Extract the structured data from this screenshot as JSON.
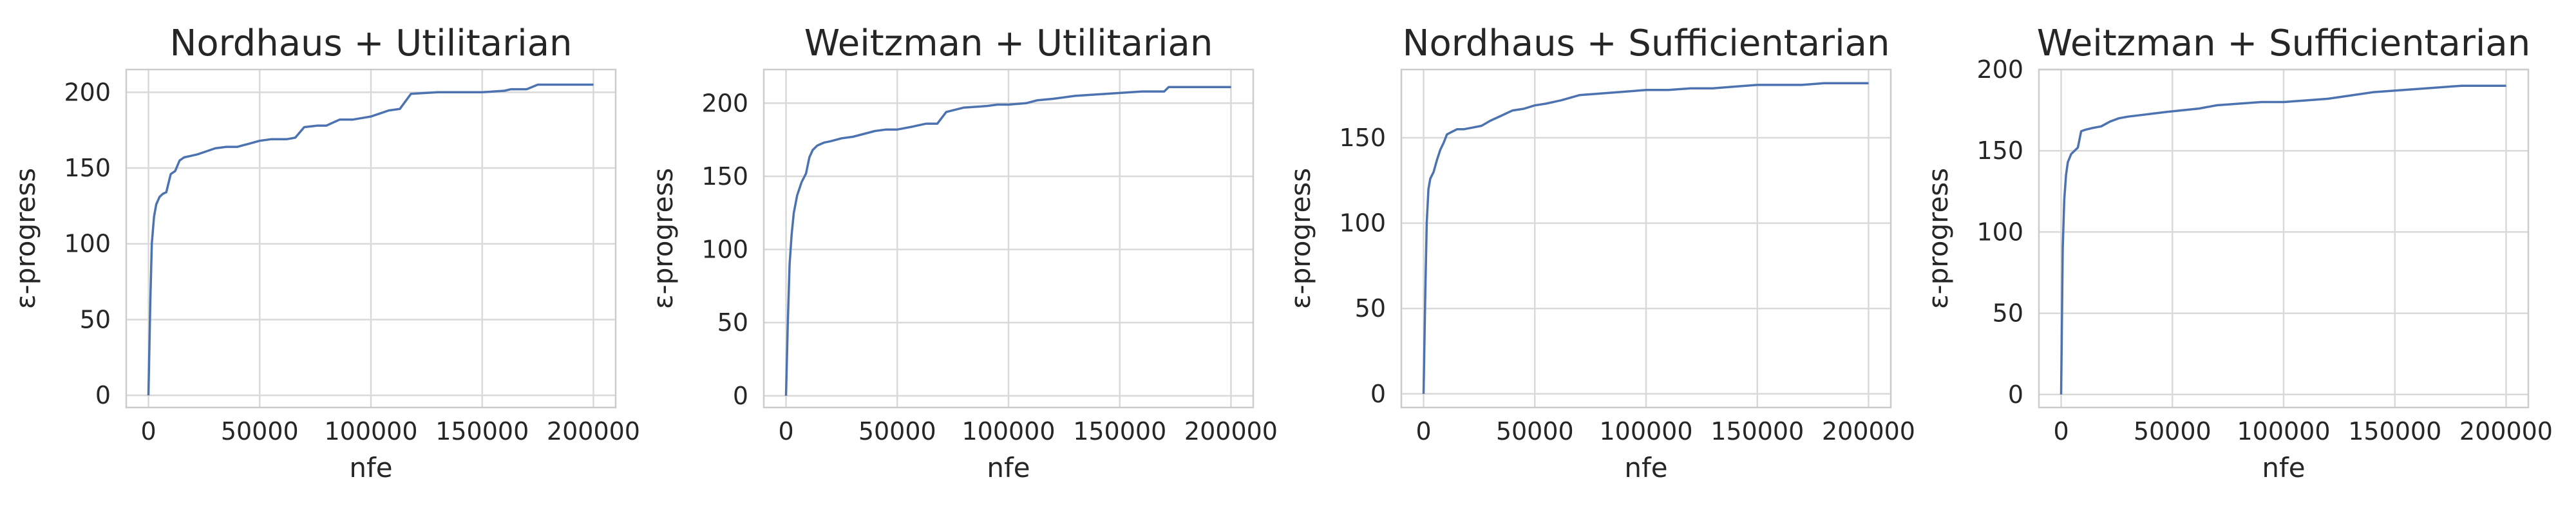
{
  "chart_data": [
    {
      "type": "line",
      "title": "Nordhaus + Utilitarian",
      "xlabel": "nfe",
      "ylabel": "ε-progress",
      "xlim": [
        -10000,
        210000
      ],
      "ylim": [
        -8,
        215
      ],
      "xticks": [
        0,
        50000,
        100000,
        150000,
        200000
      ],
      "yticks": [
        0,
        50,
        100,
        150,
        200
      ],
      "grid": true,
      "series": [
        {
          "color": "#4c72b0",
          "x": [
            0,
            800,
            1500,
            2500,
            3500,
            5000,
            6500,
            8000,
            10000,
            12000,
            14000,
            16000,
            19000,
            22000,
            26000,
            30000,
            35000,
            40000,
            45000,
            50000,
            55000,
            62000,
            66000,
            70000,
            76000,
            80000,
            86000,
            92000,
            96000,
            100000,
            104000,
            108000,
            113000,
            118000,
            130000,
            140000,
            150000,
            160000,
            163000,
            170000,
            175000,
            190000,
            200000
          ],
          "y": [
            0,
            60,
            100,
            118,
            126,
            131,
            133,
            134,
            146,
            148,
            155,
            157,
            158,
            159,
            161,
            163,
            164,
            164,
            166,
            168,
            169,
            169,
            170,
            177,
            178,
            178,
            182,
            182,
            183,
            184,
            186,
            188,
            189,
            199,
            200,
            200,
            200,
            201,
            202,
            202,
            205,
            205,
            205
          ]
        }
      ]
    },
    {
      "type": "line",
      "title": "Weitzman + Utilitarian",
      "xlabel": "nfe",
      "ylabel": "ε-progress",
      "xlim": [
        -10000,
        210000
      ],
      "ylim": [
        -8,
        223
      ],
      "xticks": [
        0,
        50000,
        100000,
        150000,
        200000
      ],
      "yticks": [
        0,
        50,
        100,
        150,
        200
      ],
      "grid": true,
      "series": [
        {
          "color": "#4c72b0",
          "x": [
            0,
            800,
            1600,
            2500,
            3500,
            5000,
            7000,
            9000,
            10500,
            12000,
            14000,
            17000,
            20000,
            25000,
            30000,
            35000,
            40000,
            45000,
            50000,
            57000,
            63000,
            68000,
            72000,
            80000,
            90000,
            95000,
            100000,
            108000,
            113000,
            120000,
            130000,
            140000,
            150000,
            160000,
            170000,
            172000,
            180000,
            190000,
            200000
          ],
          "y": [
            0,
            50,
            90,
            110,
            125,
            137,
            146,
            152,
            163,
            168,
            171,
            173,
            174,
            176,
            177,
            179,
            181,
            182,
            182,
            184,
            186,
            186,
            194,
            197,
            198,
            199,
            199,
            200,
            202,
            203,
            205,
            206,
            207,
            208,
            208,
            211,
            211,
            211,
            211
          ]
        }
      ]
    },
    {
      "type": "line",
      "title": "Nordhaus + Sufficientarian",
      "xlabel": "nfe",
      "ylabel": "ε-progress",
      "xlim": [
        -10000,
        210000
      ],
      "ylim": [
        -8,
        190
      ],
      "xticks": [
        0,
        50000,
        100000,
        150000,
        200000
      ],
      "yticks": [
        0,
        50,
        100,
        150
      ],
      "grid": true,
      "series": [
        {
          "color": "#4c72b0",
          "x": [
            0,
            700,
            1400,
            2200,
            3000,
            4500,
            6000,
            7500,
            9000,
            10500,
            12000,
            15000,
            18000,
            22000,
            26000,
            30000,
            35000,
            40000,
            45000,
            50000,
            55000,
            62000,
            70000,
            80000,
            90000,
            100000,
            110000,
            120000,
            130000,
            140000,
            150000,
            160000,
            170000,
            180000,
            190000,
            200000
          ],
          "y": [
            0,
            55,
            100,
            120,
            126,
            130,
            137,
            143,
            147,
            152,
            153,
            155,
            155,
            156,
            157,
            160,
            163,
            166,
            167,
            169,
            170,
            172,
            175,
            176,
            177,
            178,
            178,
            179,
            179,
            180,
            181,
            181,
            181,
            182,
            182,
            182
          ]
        }
      ]
    },
    {
      "type": "line",
      "title": "Weitzman + Sufficientarian",
      "xlabel": "nfe",
      "ylabel": "ε-progress",
      "xlim": [
        -10000,
        210000
      ],
      "ylim": [
        -8,
        200
      ],
      "xticks": [
        0,
        50000,
        100000,
        150000,
        200000
      ],
      "yticks": [
        0,
        50,
        100,
        150,
        200
      ],
      "grid": true,
      "series": [
        {
          "color": "#4c72b0",
          "x": [
            0,
            700,
            1400,
            2200,
            3000,
            4500,
            6000,
            7500,
            9000,
            11000,
            14000,
            18000,
            22000,
            26000,
            30000,
            36000,
            42000,
            48000,
            55000,
            62000,
            70000,
            80000,
            90000,
            100000,
            110000,
            120000,
            130000,
            140000,
            150000,
            160000,
            170000,
            180000,
            190000,
            200000
          ],
          "y": [
            0,
            90,
            120,
            135,
            143,
            148,
            150,
            152,
            162,
            163,
            164,
            165,
            168,
            170,
            171,
            172,
            173,
            174,
            175,
            176,
            178,
            179,
            180,
            180,
            181,
            182,
            184,
            186,
            187,
            188,
            189,
            190,
            190,
            190
          ]
        }
      ]
    }
  ]
}
